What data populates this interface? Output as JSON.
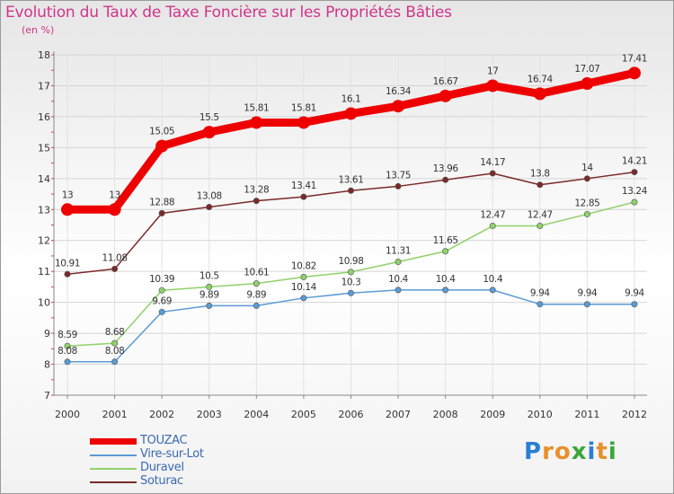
{
  "header": {
    "title": "Evolution du Taux de Taxe Foncière sur les Propriétés Bâties",
    "unit": "(en %)"
  },
  "brand": {
    "text": "Proxiti",
    "colors": [
      "#2a7fd4",
      "#e8902a",
      "#e8902a",
      "#3aa63a",
      "#2a7fd4",
      "#e8902a",
      "#3aa63a"
    ]
  },
  "chart_data": {
    "type": "line",
    "title": "Evolution du Taux de Taxe Foncière sur les Propriétés Bâties",
    "ylabel": "(en %)",
    "xlabel": "",
    "ylim": [
      7,
      18
    ],
    "yticks": [
      7,
      8,
      9,
      10,
      11,
      12,
      13,
      14,
      15,
      16,
      17,
      18
    ],
    "grid": true,
    "categories": [
      "2000",
      "2001",
      "2002",
      "2003",
      "2004",
      "2005",
      "2006",
      "2007",
      "2008",
      "2009",
      "2010",
      "2011",
      "2012"
    ],
    "series": [
      {
        "name": "TOUZAC",
        "color": "#ee0000",
        "thick": true,
        "values": [
          13,
          13,
          15.05,
          15.5,
          15.81,
          15.81,
          16.1,
          16.34,
          16.67,
          17,
          16.74,
          17.07,
          17.41
        ],
        "labels": [
          "13",
          "13",
          "15.05",
          "15.5",
          "15.81",
          "15.81",
          "16.1",
          "16.34",
          "16.67",
          "17",
          "16.74",
          "17.07",
          "17.41"
        ]
      },
      {
        "name": "Vire-sur-Lot",
        "color": "#5b9bd5",
        "thick": false,
        "values": [
          8.08,
          8.08,
          9.69,
          9.89,
          9.89,
          10.14,
          10.3,
          10.4,
          10.4,
          10.4,
          9.94,
          9.94,
          9.94
        ],
        "labels": [
          "8.08",
          "8.08",
          "9.69",
          "9.89",
          "9.89",
          "10.14",
          "10.3",
          "10.4",
          "10.4",
          "10.4",
          "9.94",
          "9.94",
          "9.94"
        ]
      },
      {
        "name": "Duravel",
        "color": "#8fd16a",
        "thick": false,
        "values": [
          8.59,
          8.68,
          10.39,
          10.5,
          10.61,
          10.82,
          10.98,
          11.31,
          11.65,
          12.47,
          12.47,
          12.85,
          13.24
        ],
        "labels": [
          "8.59",
          "8.68",
          "10.39",
          "10.5",
          "10.61",
          "10.82",
          "10.98",
          "11.31",
          "11.65",
          "12.47",
          "12.47",
          "12.85",
          "13.24"
        ]
      },
      {
        "name": "Soturac",
        "color": "#7a2a2a",
        "thick": false,
        "values": [
          10.91,
          11.08,
          12.88,
          13.08,
          13.28,
          13.41,
          13.61,
          13.75,
          13.96,
          14.17,
          13.8,
          14,
          14.21
        ],
        "labels": [
          "10.91",
          "11.08",
          "12.88",
          "13.08",
          "13.28",
          "13.41",
          "13.61",
          "13.75",
          "13.96",
          "14.17",
          "13.8",
          "14",
          "14.21"
        ]
      }
    ],
    "legend": {
      "position": "bottom-left"
    }
  }
}
